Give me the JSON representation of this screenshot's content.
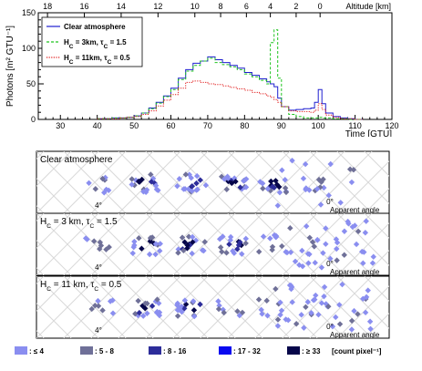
{
  "chart_data": [
    {
      "type": "line",
      "title": "",
      "xlabel": "Time [GTU]",
      "ylabel": "Photons [m² GTU⁻¹]",
      "xlim": [
        24,
        120
      ],
      "ylim": [
        0,
        150
      ],
      "x_ticks": [
        "30",
        "40",
        "50",
        "60",
        "70",
        "80",
        "90",
        "100",
        "110",
        "120"
      ],
      "y_ticks": [
        "0",
        "50",
        "100",
        "150"
      ],
      "top_axis": {
        "label": "Altitude [km]",
        "ticks": [
          {
            "label": "18",
            "time": 26.5
          },
          {
            "label": "16",
            "time": 36.5
          },
          {
            "label": "14",
            "time": 46.5
          },
          {
            "label": "12",
            "time": 56.5
          },
          {
            "label": "10",
            "time": 66.5
          },
          {
            "label": "8",
            "time": 73.5
          },
          {
            "label": "6",
            "time": 80.5
          },
          {
            "label": "4",
            "time": 87
          },
          {
            "label": "2",
            "time": 94
          },
          {
            "label": "0",
            "time": 100.5
          }
        ]
      },
      "legend": {
        "position": "top-left",
        "entries": [
          {
            "label": "Clear atmosphere",
            "color": "#1f1fd0",
            "dash": "solid"
          },
          {
            "label": "H_C = 3km, τ_C = 1.5",
            "color": "#1fc41f",
            "dash": "dashed"
          },
          {
            "label": "H_C = 11km, τ_C = 0.5",
            "color": "#e01a1a",
            "dash": "dotted"
          }
        ]
      },
      "x": [
        40,
        42,
        44,
        46,
        48,
        50,
        52,
        54,
        56,
        58,
        60,
        62,
        64,
        66,
        68,
        70,
        72,
        74,
        76,
        78,
        80,
        82,
        84,
        86,
        87,
        88,
        89,
        90,
        92,
        94,
        96,
        98,
        99,
        100,
        101,
        102,
        104,
        106,
        108,
        110
      ],
      "series": [
        {
          "name": "Clear atmosphere",
          "color": "#1f1fd0",
          "values": [
            1,
            1,
            2,
            2,
            3,
            5,
            9,
            16,
            24,
            33,
            44,
            58,
            70,
            79,
            82,
            88,
            84,
            80,
            76,
            72,
            66,
            62,
            57,
            53,
            50,
            46,
            30,
            18,
            13,
            14,
            15,
            16,
            24,
            42,
            22,
            9,
            4,
            2,
            1,
            0
          ]
        },
        {
          "name": "H_C = 3km, τ_C = 1.5",
          "color": "#1fc41f",
          "values": [
            1,
            1,
            2,
            2,
            3,
            5,
            9,
            15,
            23,
            32,
            42,
            56,
            68,
            76,
            82,
            86,
            80,
            77,
            74,
            70,
            64,
            60,
            55,
            50,
            108,
            126,
            58,
            18,
            7,
            4,
            2,
            2,
            2,
            3,
            2,
            2,
            1,
            1,
            0,
            0
          ]
        },
        {
          "name": "H_C = 11km, τ_C = 0.5",
          "color": "#e01a1a",
          "values": [
            1,
            1,
            1,
            2,
            3,
            4,
            7,
            12,
            19,
            27,
            35,
            44,
            52,
            54,
            52,
            50,
            49,
            47,
            45,
            43,
            41,
            38,
            36,
            33,
            31,
            28,
            24,
            18,
            12,
            11,
            11,
            10,
            13,
            22,
            14,
            6,
            3,
            1,
            1,
            0
          ]
        }
      ],
      "grid": false
    },
    {
      "type": "heatmap",
      "title": "",
      "panels": [
        {
          "label": "Clear atmosphere",
          "tags": [
            "Apparent angle",
            "4°",
            "0°"
          ]
        },
        {
          "label": "H_C = 3 km, τ_C = 1.5",
          "tags": [
            "Apparent angle",
            "4°",
            "0°"
          ]
        },
        {
          "label": "H_C = 11 km, τ_C = 0.5",
          "tags": [
            "Apparent angle",
            "4°",
            "0°"
          ]
        }
      ],
      "color_legend": {
        "unit": "[count pixel⁻¹]",
        "bins": [
          {
            "label": ": ≤ 4",
            "color": "#8a8ef0"
          },
          {
            "label": ": 5 - 8",
            "color": "#6f7098"
          },
          {
            "label": ": 8 - 16",
            "color": "#2d2d9a"
          },
          {
            "label": ": 17 - 32",
            "color": "#0a0af0"
          },
          {
            "label": ": ≥ 33",
            "color": "#06064a"
          }
        ]
      }
    }
  ]
}
